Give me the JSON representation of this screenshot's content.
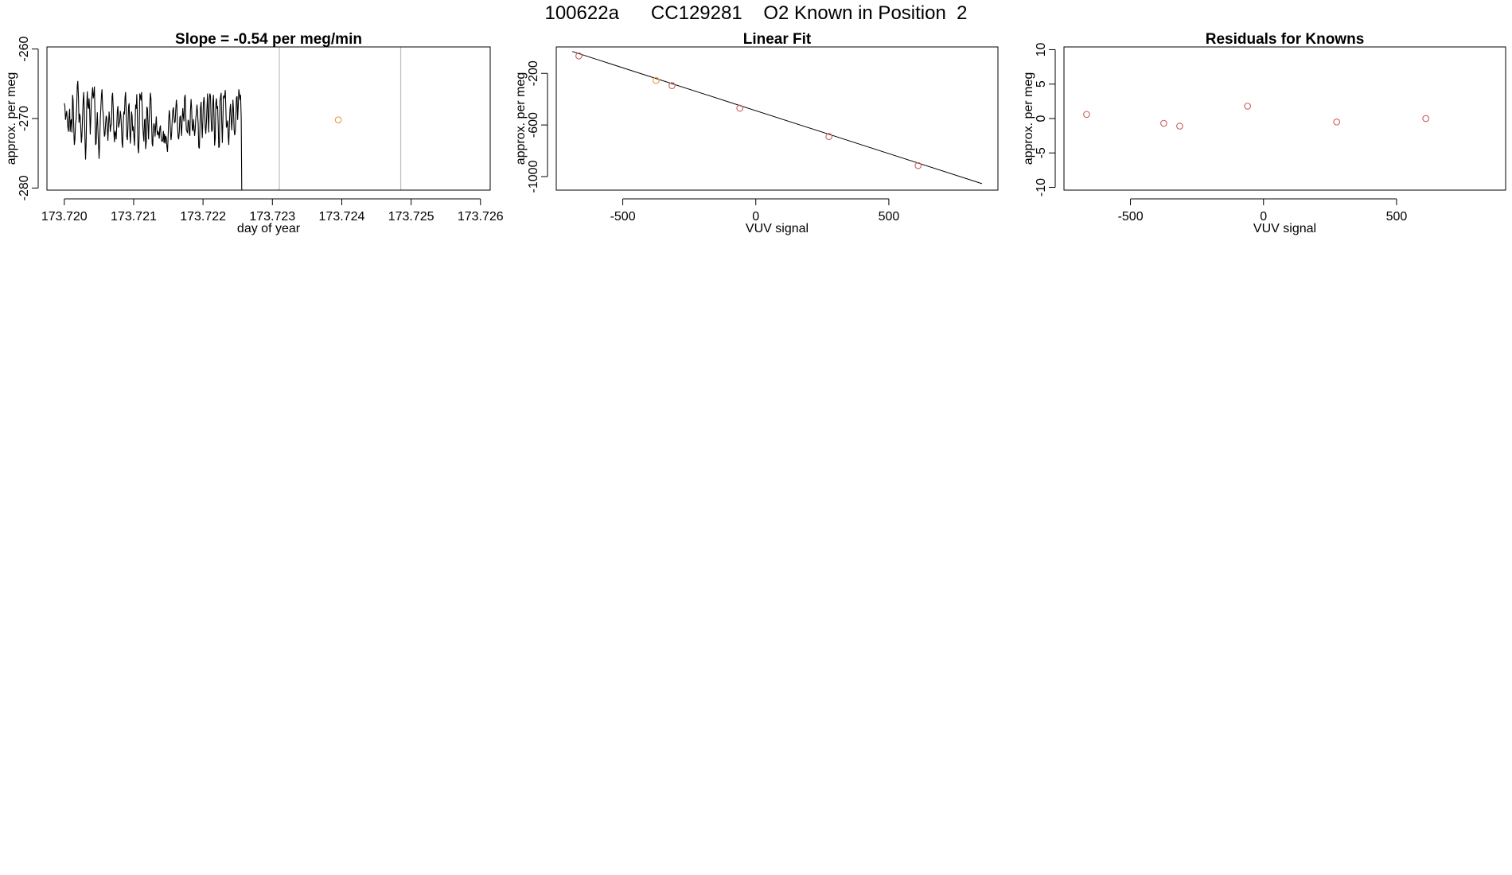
{
  "page": {
    "title": "100622a      CC129281    O2 Known in Position  2"
  },
  "colors": {
    "line": "#000000",
    "frame": "#000000",
    "vline": "#bebebe",
    "point_red": "#cd5c5c",
    "point_orange": "#e69b4a"
  },
  "chart_data": [
    {
      "type": "line",
      "title": "Slope =  -0.54  per meg/min",
      "xlabel": "day of year",
      "ylabel": "approx. per meg",
      "xlim": [
        173.71975,
        173.72614
      ],
      "ylim": [
        -280.3,
        -259.7
      ],
      "xticks": [
        173.72,
        173.721,
        173.722,
        173.723,
        173.724,
        173.725,
        173.726
      ],
      "xtick_labels": [
        "173.720",
        "173.721",
        "173.722",
        "173.723",
        "173.724",
        "173.725",
        "173.726"
      ],
      "yticks": [
        -280,
        -270,
        -260
      ],
      "ytick_labels": [
        "-280",
        "-270",
        "-260"
      ],
      "vlines": [
        173.7231,
        173.72485
      ],
      "series": [
        {
          "x_start": 173.72,
          "x_step": 8.5e-06,
          "values": [
            -267.8,
            -268.2,
            -270.2,
            -269.5,
            -268.9,
            -270.1,
            -271.2,
            -271.9,
            -269.8,
            -268.6,
            -271.9,
            -270.4,
            -270.1,
            -272.0,
            -266.6,
            -267.4,
            -271.0,
            -273.8,
            -273.1,
            -270.8,
            -270.2,
            -268.2,
            -265.3,
            -264.6,
            -267.0,
            -270.6,
            -269.3,
            -269.8,
            -271.4,
            -273.5,
            -272.4,
            -269.6,
            -267.4,
            -266.2,
            -269.1,
            -272.6,
            -275.9,
            -273.7,
            -268.6,
            -266.1,
            -268.1,
            -268.6,
            -267.1,
            -268.8,
            -272.3,
            -270.2,
            -267.3,
            -266.7,
            -265.5,
            -267.1,
            -266.7,
            -265.4,
            -268.9,
            -273.8,
            -273.6,
            -271.1,
            -269.1,
            -271.5,
            -273.8,
            -275.8,
            -273.6,
            -270.2,
            -268.5,
            -266.6,
            -265.8,
            -268.6,
            -269.3,
            -270.9,
            -272.6,
            -272.3,
            -270.7,
            -269.6,
            -269.9,
            -271.5,
            -273.2,
            -270.8,
            -269.0,
            -270.1,
            -271.9,
            -271.0,
            -270.9,
            -266.9,
            -266.3,
            -268.5,
            -271.8,
            -273.4,
            -271.8,
            -272.2,
            -273.0,
            -271.0,
            -268.8,
            -268.2,
            -271.3,
            -270.8,
            -270.4,
            -268.9,
            -269.6,
            -271.5,
            -273.6,
            -274.2,
            -270.6,
            -269.0,
            -269.4,
            -267.0,
            -266.2,
            -268.9,
            -272.6,
            -273.1,
            -271.2,
            -268.2,
            -267.8,
            -271.5,
            -273.6,
            -271.9,
            -269.0,
            -269.6,
            -271.8,
            -271.1,
            -272.5,
            -273.9,
            -271.2,
            -268.0,
            -268.6,
            -266.5,
            -269.9,
            -274.2,
            -275.0,
            -272.4,
            -266.4,
            -266.7,
            -267.4,
            -266.2,
            -268.3,
            -270.9,
            -272.3,
            -273.3,
            -270.2,
            -270.1,
            -274.4,
            -273.4,
            -268.3,
            -268.6,
            -271.0,
            -273.0,
            -270.0,
            -268.2,
            -266.3,
            -267.1,
            -270.2,
            -273.6,
            -274.0,
            -271.4,
            -270.7,
            -271.2,
            -272.6,
            -271.1,
            -269.7,
            -271.5,
            -272.4,
            -271.9,
            -272.1,
            -272.9,
            -271.4,
            -271.0,
            -272.4,
            -273.2,
            -273.3,
            -273.1,
            -271.8,
            -273.5,
            -272.2,
            -273.6,
            -272.5,
            -272.8,
            -274.0,
            -274.8,
            -272.8,
            -270.4,
            -268.8,
            -269.6,
            -271.9,
            -273.1,
            -272.3,
            -270.2,
            -268.9,
            -268.4,
            -269.7,
            -270.6,
            -270.5,
            -268.8,
            -267.3,
            -268.2,
            -270.9,
            -272.6,
            -273.0,
            -271.9,
            -269.8,
            -269.6,
            -271.3,
            -272.5,
            -270.0,
            -268.5,
            -269.8,
            -270.4,
            -267.0,
            -266.6,
            -269.4,
            -271.7,
            -271.8,
            -272.1,
            -270.2,
            -270.4,
            -272.1,
            -272.5,
            -268.9,
            -267.2,
            -268.5,
            -271.5,
            -271.8,
            -270.1,
            -271.3,
            -272.5,
            -271.6,
            -270.0,
            -269.2,
            -268.0,
            -269.1,
            -270.7,
            -274.1,
            -274.3,
            -271.5,
            -268.5,
            -267.6,
            -270.3,
            -272.8,
            -270.4,
            -267.7,
            -266.9,
            -268.3,
            -271.3,
            -272.2,
            -270.5,
            -268.4,
            -266.4,
            -269.8,
            -272.0,
            -267.1,
            -266.4,
            -266.8,
            -270.2,
            -271.9,
            -271.6,
            -267.6,
            -266.6,
            -270.0,
            -273.9,
            -272.8,
            -267.8,
            -267.1,
            -268.6,
            -268.2,
            -270.9,
            -274.2,
            -274.0,
            -267.5,
            -266.9,
            -266.3,
            -270.4,
            -273.5,
            -270.2,
            -266.7,
            -267.1,
            -266.8,
            -265.9,
            -268.5,
            -271.3,
            -270.9,
            -270.3,
            -272.6,
            -273.8,
            -270.6,
            -268.7,
            -267.9,
            -270.1,
            -271.7,
            -269.8,
            -267.3,
            -268.7,
            -271.6,
            -272.4,
            -271.8,
            -269.6,
            -267.0,
            -266.8,
            -270.2,
            -268.2,
            -265.8,
            -266.4,
            -267.3,
            -266.6,
            -269.9,
            -280.3
          ]
        }
      ],
      "highlight_points": [
        {
          "x": 173.72395,
          "y": -270.2,
          "color": "orange"
        }
      ]
    },
    {
      "type": "scatter",
      "title": "Linear Fit",
      "xlabel": "VUV signal",
      "ylabel": "approx. per meg",
      "xlim": [
        -750,
        910
      ],
      "ylim": [
        -1105,
        5
      ],
      "xticks": [
        -500,
        0,
        500
      ],
      "xtick_labels": [
        "-500",
        "0",
        "500"
      ],
      "yticks": [
        -1000,
        -600,
        -200
      ],
      "ytick_labels": [
        "-1000",
        "-600",
        "-200"
      ],
      "fit_line": {
        "x": [
          -690,
          850
        ],
        "y": [
          -30,
          -1055
        ]
      },
      "points": [
        {
          "x": -665,
          "y": -65,
          "color": "red"
        },
        {
          "x": -375,
          "y": -255,
          "color": "orange"
        },
        {
          "x": -315,
          "y": -295,
          "color": "red"
        },
        {
          "x": -60,
          "y": -470,
          "color": "red"
        },
        {
          "x": 275,
          "y": -690,
          "color": "red"
        },
        {
          "x": 610,
          "y": -915,
          "color": "red"
        }
      ]
    },
    {
      "type": "scatter",
      "title": "Residuals for Knowns",
      "xlabel": "VUV signal",
      "ylabel": "approx. per meg",
      "xlim": [
        -750,
        910
      ],
      "ylim": [
        -10.4,
        10.4
      ],
      "xticks": [
        -500,
        0,
        500
      ],
      "xtick_labels": [
        "-500",
        "0",
        "500"
      ],
      "yticks": [
        -10,
        -5,
        0,
        5,
        10
      ],
      "ytick_labels": [
        "-10",
        "-5",
        "0",
        "5",
        "10"
      ],
      "points": [
        {
          "x": -665,
          "y": 0.6,
          "color": "red"
        },
        {
          "x": -375,
          "y": -0.7,
          "color": "red"
        },
        {
          "x": -315,
          "y": -1.1,
          "color": "red"
        },
        {
          "x": -60,
          "y": 1.8,
          "color": "red"
        },
        {
          "x": 275,
          "y": -0.5,
          "color": "red"
        },
        {
          "x": 610,
          "y": 0.0,
          "color": "red"
        }
      ]
    }
  ]
}
